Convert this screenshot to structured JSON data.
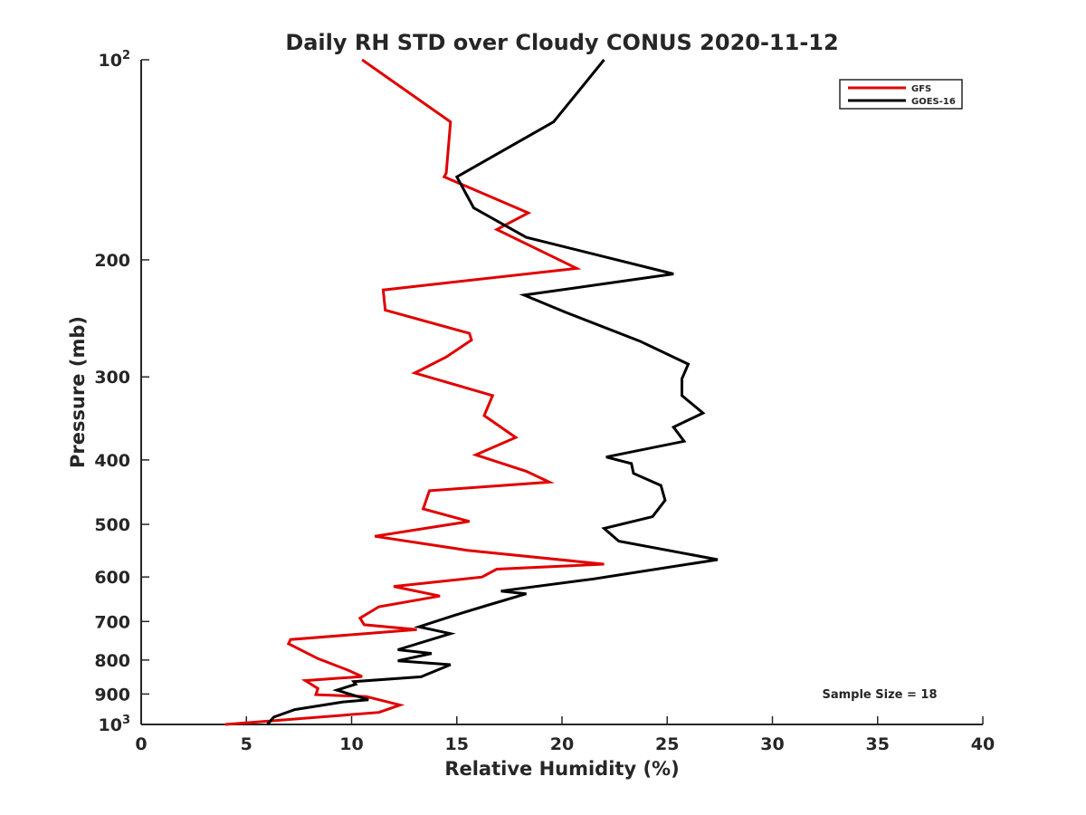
{
  "chart_data": {
    "type": "line",
    "title": "Daily RH STD over Cloudy CONUS 2020-11-12",
    "xlabel": "Relative Humidity (%)",
    "ylabel": "Pressure (mb)",
    "xlim": [
      0,
      40
    ],
    "ylim": [
      100,
      1000
    ],
    "yscale": "log",
    "y_reversed": true,
    "x_ticks": [
      "0",
      "5",
      "10",
      "15",
      "20",
      "25",
      "30",
      "35",
      "40"
    ],
    "y_ticks": [
      {
        "value": 100,
        "label": "10",
        "sup": "2"
      },
      {
        "value": 200,
        "label": "200",
        "sup": ""
      },
      {
        "value": 300,
        "label": "300",
        "sup": ""
      },
      {
        "value": 400,
        "label": "400",
        "sup": ""
      },
      {
        "value": 500,
        "label": "500",
        "sup": ""
      },
      {
        "value": 600,
        "label": "600",
        "sup": ""
      },
      {
        "value": 700,
        "label": "700",
        "sup": ""
      },
      {
        "value": 800,
        "label": "800",
        "sup": ""
      },
      {
        "value": 900,
        "label": "900",
        "sup": ""
      },
      {
        "value": 1000,
        "label": "10",
        "sup": "3"
      }
    ],
    "grid": false,
    "legend_position": "top-right",
    "annotation": "Sample Size = 18",
    "series": [
      {
        "name": "GFS",
        "color": "#e00000",
        "x": [
          10.5,
          14.7,
          14.5,
          14.4,
          18.4,
          16.9,
          20.7,
          11.5,
          11.6,
          15.6,
          15.7,
          14.5,
          13.0,
          16.7,
          16.3,
          17.8,
          15.9,
          18.3,
          19.4,
          13.7,
          13.4,
          15.6,
          11.1,
          15.5,
          22.0,
          16.9,
          16.2,
          12.0,
          14.2,
          11.3,
          10.4,
          10.6,
          13.1,
          7.1,
          7.0,
          8.4,
          9.8,
          10.5,
          7.8,
          8.4,
          8.3,
          10.7,
          12.3,
          11.3,
          4.0
        ],
        "y": [
          100,
          124,
          148,
          150,
          170,
          180,
          206,
          222,
          238,
          258,
          264,
          280,
          296,
          320,
          343,
          370,
          393,
          416,
          432,
          445,
          474,
          495,
          521,
          547,
          574,
          584,
          600,
          620,
          641,
          665,
          692,
          708,
          720,
          745,
          756,
          796,
          828,
          847,
          859,
          883,
          902,
          908,
          935,
          959,
          1000
        ]
      },
      {
        "name": "GOES-16",
        "color": "#000000",
        "x": [
          22.0,
          19.6,
          15.0,
          15.8,
          18.3,
          25.3,
          18.2,
          20.2,
          23.7,
          26.0,
          25.7,
          25.7,
          26.7,
          25.3,
          25.8,
          22.1,
          23.3,
          23.4,
          24.7,
          24.9,
          24.3,
          22.0,
          22.7,
          27.4,
          21.5,
          17.1,
          18.3,
          16.3,
          14.9,
          13.2,
          14.7,
          12.2,
          13.8,
          12.2,
          14.7,
          13.3,
          10.1,
          10.2,
          9.3,
          10.8,
          9.6,
          7.3,
          6.3,
          6.0
        ],
        "y": [
          100,
          124,
          150,
          167,
          185,
          210,
          226,
          240,
          265,
          287,
          302,
          320,
          340,
          357,
          375,
          396,
          405,
          419,
          437,
          460,
          487,
          507,
          530,
          565,
          604,
          630,
          636,
          664,
          685,
          713,
          730,
          772,
          782,
          802,
          813,
          848,
          862,
          870,
          888,
          918,
          925,
          950,
          975,
          1000
        ]
      }
    ]
  }
}
